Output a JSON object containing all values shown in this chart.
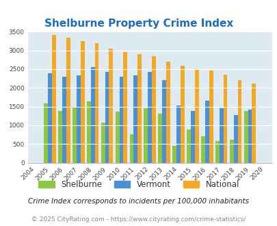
{
  "title": "Shelburne Property Crime Index",
  "years": [
    2004,
    2005,
    2006,
    2007,
    2008,
    2009,
    2010,
    2011,
    2012,
    2013,
    2014,
    2015,
    2016,
    2017,
    2018,
    2019,
    2020
  ],
  "shelburne": [
    0,
    1580,
    1380,
    1470,
    1640,
    1080,
    1370,
    760,
    1450,
    1310,
    450,
    890,
    700,
    570,
    620,
    1390,
    0
  ],
  "vermont": [
    0,
    2380,
    2300,
    2330,
    2550,
    2420,
    2290,
    2340,
    2430,
    2210,
    1530,
    1390,
    1660,
    1450,
    1280,
    1410,
    0
  ],
  "national": [
    0,
    3420,
    3330,
    3250,
    3200,
    3040,
    2950,
    2900,
    2850,
    2700,
    2590,
    2500,
    2470,
    2360,
    2200,
    2110,
    0
  ],
  "shelburne_color": "#8dc63f",
  "vermont_color": "#4a90d9",
  "national_color": "#f5a623",
  "bg_color": "#ddeaf2",
  "title_color": "#1a6cc7",
  "ylim": [
    0,
    3500
  ],
  "yticks": [
    0,
    500,
    1000,
    1500,
    2000,
    2500,
    3000,
    3500
  ],
  "legend_labels": [
    "Shelburne",
    "Vermont",
    "National"
  ],
  "footnote1": "Crime Index corresponds to incidents per 100,000 inhabitants",
  "footnote2": "© 2025 CityRating.com - https://www.cityrating.com/crime-statistics/",
  "title_fontsize": 11,
  "tick_fontsize": 6.5,
  "legend_fontsize": 8.5,
  "footnote1_fontsize": 7.5,
  "footnote2_fontsize": 6.5
}
